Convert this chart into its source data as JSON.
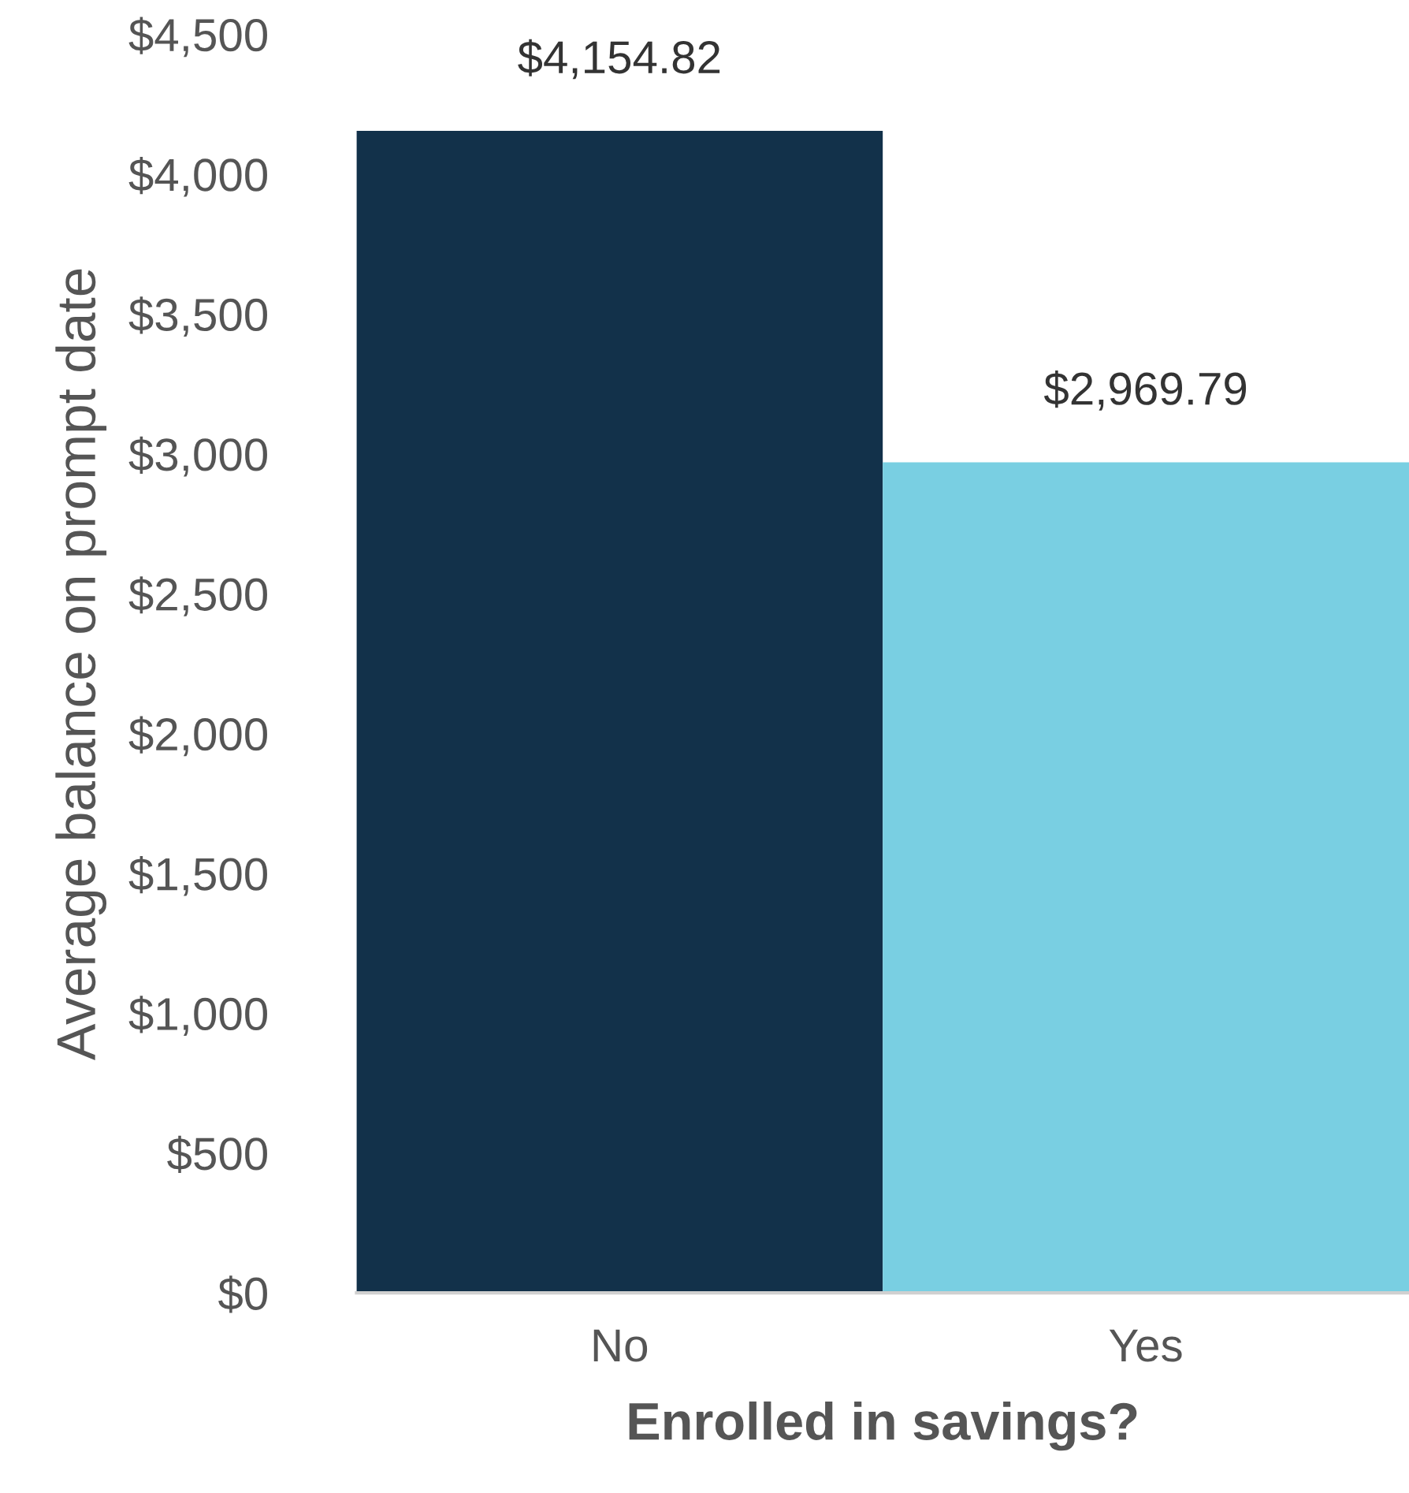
{
  "chart_data": {
    "type": "bar",
    "xlabel": "Enrolled in savings?",
    "ylabel": "Average balance on prompt date",
    "categories": [
      "No",
      "Yes"
    ],
    "values": [
      4154.82,
      2969.79
    ],
    "colors": [
      "#12314a",
      "#79cfe2"
    ],
    "value_labels": [
      "$4,154.82",
      "$2,969.79"
    ],
    "ylim": [
      0,
      4500
    ],
    "yticks": [
      {
        "value": 0,
        "label": "$0"
      },
      {
        "value": 500,
        "label": "$500"
      },
      {
        "value": 1000,
        "label": "$1,000"
      },
      {
        "value": 1500,
        "label": "$1,500"
      },
      {
        "value": 2000,
        "label": "$2,000"
      },
      {
        "value": 2500,
        "label": "$2,500"
      },
      {
        "value": 3000,
        "label": "$3,000"
      },
      {
        "value": 3500,
        "label": "$3,500"
      },
      {
        "value": 4000,
        "label": "$4,000"
      },
      {
        "value": 4500,
        "label": "$4,500"
      }
    ],
    "grid": false
  }
}
